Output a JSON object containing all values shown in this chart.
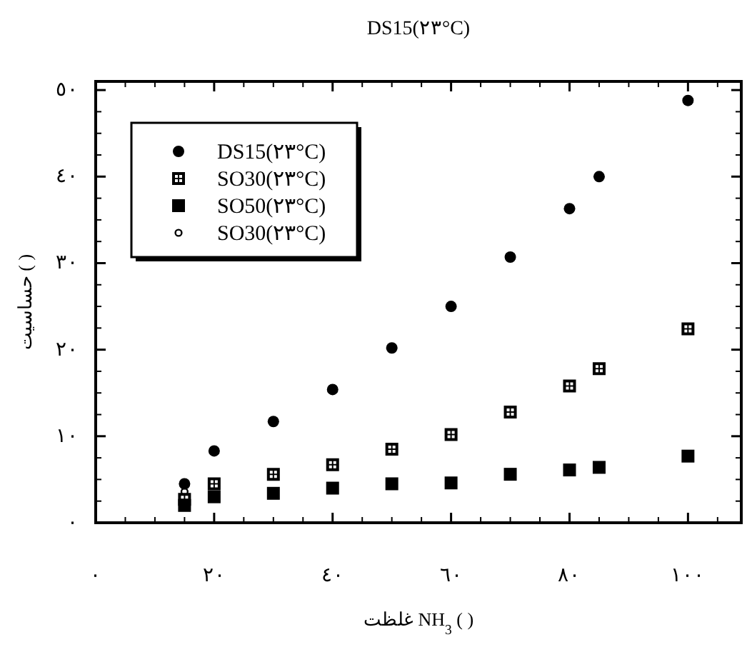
{
  "chart_data": {
    "type": "scatter",
    "title": "DS15(٢٣°C)",
    "xlabel": "غلظت NH$_{3}$      ( )",
    "ylabel": "حساسیت   ( )",
    "xlim": [
      0,
      109
    ],
    "ylim": [
      0,
      51
    ],
    "xticks": [
      {
        "value": 0,
        "label": "٠"
      },
      {
        "value": 20,
        "label": "٢٠"
      },
      {
        "value": 40,
        "label": "٤٠"
      },
      {
        "value": 60,
        "label": "٦٠"
      },
      {
        "value": 80,
        "label": "٨٠"
      },
      {
        "value": 100,
        "label": "١٠٠"
      }
    ],
    "yticks": [
      {
        "value": 0,
        "label": "٠"
      },
      {
        "value": 10,
        "label": "١٠"
      },
      {
        "value": 20,
        "label": "٢٠"
      },
      {
        "value": 30,
        "label": "٣٠"
      },
      {
        "value": 40,
        "label": "٤٠"
      },
      {
        "value": 50,
        "label": "٥٠"
      }
    ],
    "legend": "top left",
    "grid": false,
    "series": [
      {
        "name": "DS15(٢٣°C)",
        "color": "#000000",
        "marker": "circle",
        "x": [
          15,
          20,
          30,
          40,
          50,
          60,
          70,
          80,
          85,
          100
        ],
        "values": [
          4.5,
          8.3,
          11.7,
          15.4,
          20.2,
          25,
          30.7,
          36.3,
          40,
          48.8
        ]
      },
      {
        "name": "SO30(٢٣°C)",
        "color": "#000000",
        "marker": "square",
        "x": [
          15,
          20,
          30,
          40,
          50,
          60,
          70,
          80,
          85,
          100
        ],
        "values": [
          2.7,
          4.5,
          5.6,
          6.7,
          8.5,
          10.2,
          12.8,
          15.8,
          17.8,
          22.4
        ]
      },
      {
        "name": "SO50(٢٣°C)",
        "color": "#000000",
        "marker": "square",
        "x": [
          15,
          20,
          30,
          40,
          50,
          60,
          70,
          80,
          85,
          100
        ],
        "values": [
          2,
          3,
          3.4,
          4,
          4.5,
          4.6,
          5.6,
          6.1,
          6.4,
          7.7
        ]
      },
      {
        "name": "SO30(٢٣°C)",
        "color": "#000000",
        "marker": "circle",
        "x": [
          15
        ],
        "values": [
          3.6
        ]
      }
    ]
  }
}
